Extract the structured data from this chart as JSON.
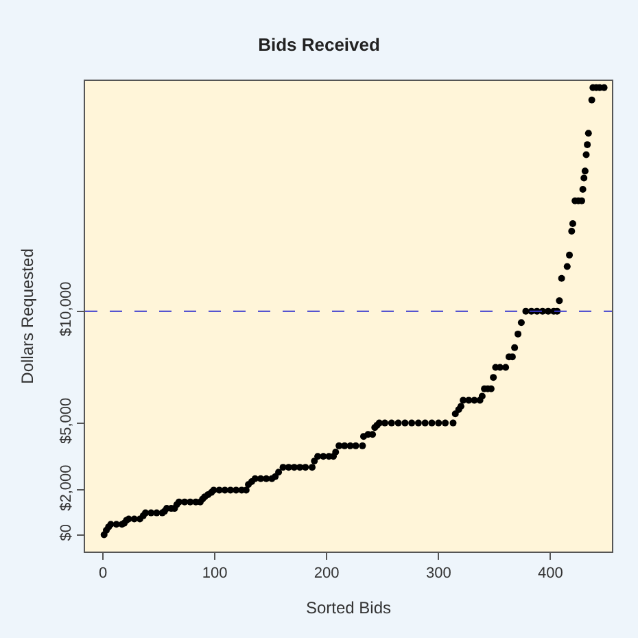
{
  "chart_data": {
    "type": "scatter",
    "title": "Bids Received",
    "xlabel": "Sorted Bids",
    "ylabel": "Dollars Requested",
    "x": [
      1,
      3,
      5,
      7,
      12,
      17,
      19,
      21,
      23,
      28,
      33,
      36,
      38,
      43,
      48,
      53,
      55,
      57,
      61,
      64,
      66,
      68,
      73,
      78,
      83,
      87,
      89,
      91,
      94,
      97,
      99,
      104,
      109,
      114,
      119,
      124,
      128,
      130,
      133,
      136,
      141,
      146,
      151,
      154,
      157,
      161,
      166,
      171,
      176,
      181,
      187,
      189,
      192,
      197,
      202,
      206,
      208,
      211,
      216,
      221,
      226,
      232,
      233,
      237,
      241,
      243,
      245,
      247,
      252,
      258,
      264,
      270,
      276,
      282,
      288,
      294,
      300,
      306,
      313,
      315,
      318,
      320,
      322,
      327,
      332,
      337,
      339,
      341,
      344,
      347,
      349,
      351,
      355,
      360,
      363,
      366,
      368,
      371,
      374,
      378,
      383,
      388,
      393,
      398,
      403,
      406,
      408,
      410,
      415,
      417,
      419,
      420,
      422,
      425,
      428,
      429,
      430,
      431,
      432,
      433,
      434,
      437,
      438,
      441,
      444,
      448
    ],
    "values": [
      0,
      200,
      350,
      470,
      470,
      470,
      520,
      650,
      710,
      710,
      710,
      850,
      980,
      980,
      980,
      980,
      1050,
      1180,
      1180,
      1180,
      1350,
      1470,
      1470,
      1470,
      1470,
      1470,
      1600,
      1700,
      1800,
      1900,
      2000,
      2000,
      2000,
      2000,
      2000,
      2000,
      2000,
      2250,
      2380,
      2510,
      2510,
      2510,
      2510,
      2600,
      2800,
      3020,
      3020,
      3020,
      3020,
      3020,
      3020,
      3300,
      3510,
      3510,
      3510,
      3510,
      3700,
      3980,
      3980,
      3980,
      3980,
      3980,
      4400,
      4490,
      4490,
      4800,
      4900,
      5000,
      5000,
      5000,
      5000,
      5000,
      5000,
      5000,
      5000,
      5000,
      5000,
      5000,
      5000,
      5410,
      5600,
      5750,
      6020,
      6020,
      6020,
      6020,
      6200,
      6530,
      6530,
      6530,
      7040,
      7490,
      7490,
      7490,
      7960,
      7960,
      8370,
      8980,
      9490,
      10000,
      10000,
      10000,
      10000,
      10000,
      10000,
      10000,
      10470,
      11470,
      12000,
      12510,
      13580,
      13920,
      14940,
      14940,
      14940,
      15450,
      15960,
      16270,
      17000,
      17450,
      17960,
      19450,
      20000,
      20000,
      20000,
      20000
    ],
    "color": "#000000",
    "marker": "circle",
    "xlim": [
      -16,
      455
    ],
    "ylim": [
      -750,
      20300
    ],
    "xticks": [
      0,
      100,
      200,
      300,
      400
    ],
    "yticks": [
      {
        "value": 0,
        "label": "$0"
      },
      {
        "value": 2000,
        "label": "$2,000"
      },
      {
        "value": 5000,
        "label": "$5,000"
      },
      {
        "value": 10000,
        "label": "$10,000"
      }
    ],
    "ref_lines": [
      {
        "axis": "y",
        "value": 10000,
        "color": "#3a3ad0",
        "line_style": "dashed"
      }
    ]
  }
}
